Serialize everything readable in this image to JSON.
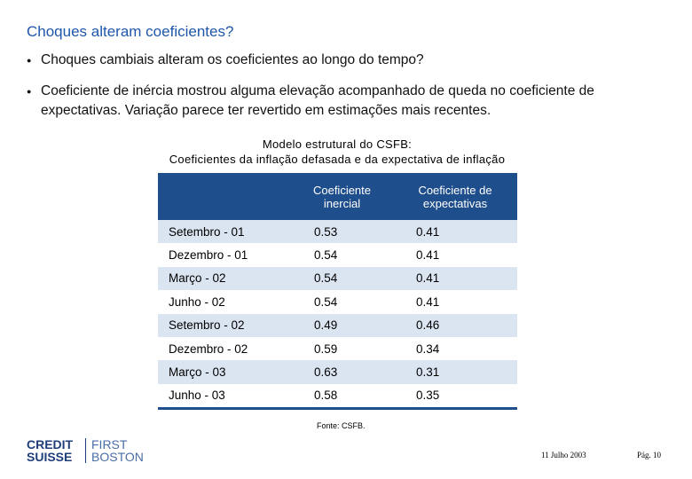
{
  "header": {
    "title": "Choques alteram coeficientes?"
  },
  "bullets": [
    "Choques cambiais alteram os coeficientes ao longo do tempo?",
    "Coeficiente de inércia mostrou alguma elevação acompanhado de queda no coeficiente de expectativas. Variação parece ter revertido em estimações mais recentes."
  ],
  "table": {
    "caption": [
      "Modelo estrutural do CSFB:",
      "Coeficientes da inflação defasada e da expectativa de inflação"
    ],
    "columns": [
      "Coeficiente inercial",
      "Coeficiente de expectativas"
    ],
    "rows": [
      [
        "Setembro - 01",
        0.53,
        0.41
      ],
      [
        "Dezembro - 01",
        0.54,
        0.41
      ],
      [
        "Março - 02",
        0.54,
        0.41
      ],
      [
        "Junho - 02",
        0.54,
        0.41
      ],
      [
        "Setembro - 02",
        0.49,
        0.46
      ],
      [
        "Dezembro - 02",
        0.59,
        0.34
      ],
      [
        "Março - 03",
        0.63,
        0.31
      ],
      [
        "Junho - 03",
        0.58,
        0.35
      ]
    ],
    "source": "Fonte: CSFB."
  },
  "footer": {
    "logo": [
      "CREDIT",
      "SUISSE",
      "FIRST",
      "BOSTON"
    ],
    "date": "11 Julho 2003",
    "page": "Pág. 10"
  }
}
